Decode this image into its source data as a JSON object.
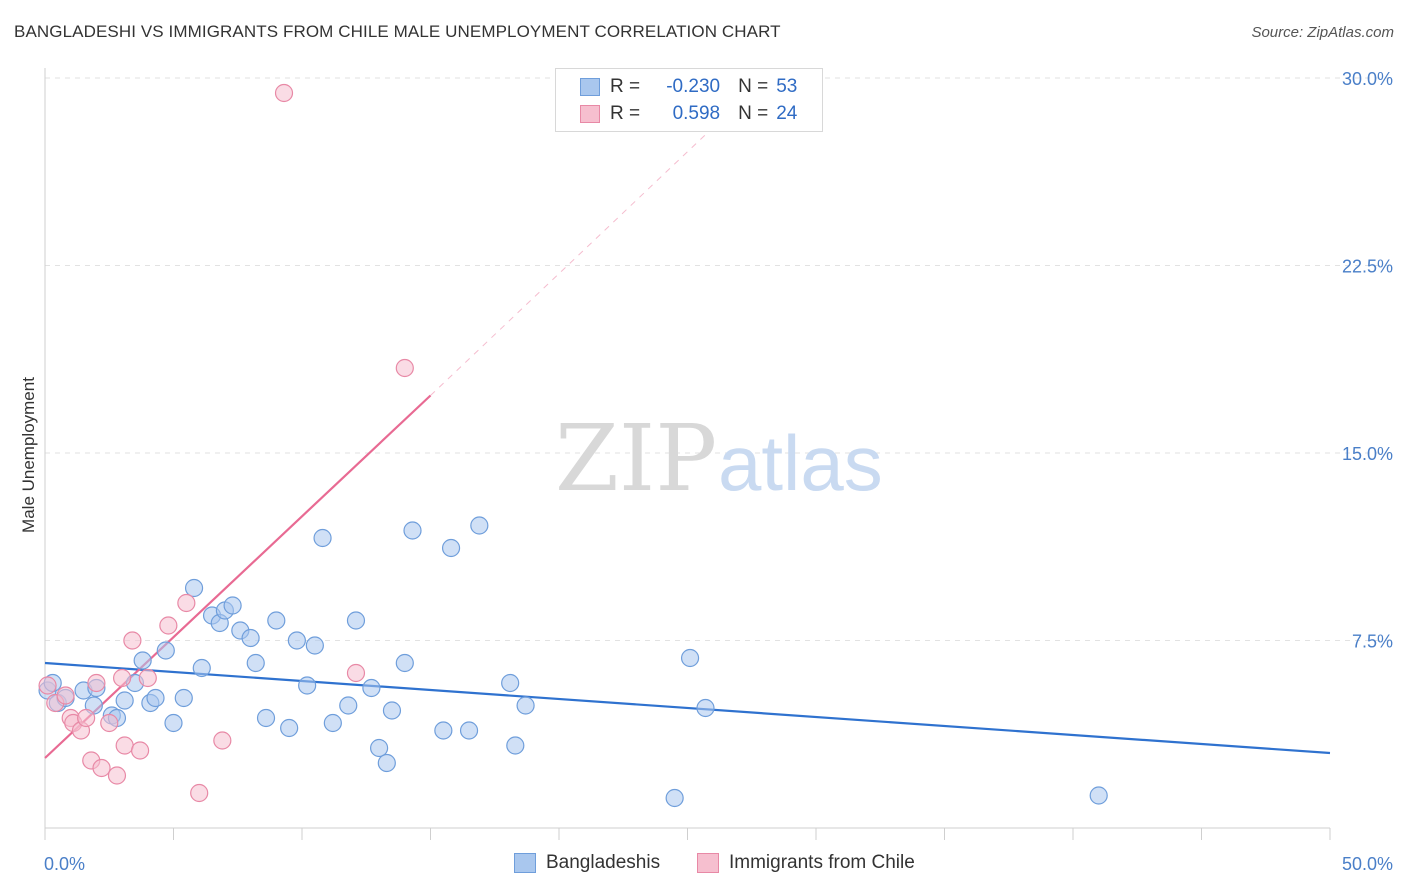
{
  "title": "BANGLADESHI VS IMMIGRANTS FROM CHILE MALE UNEMPLOYMENT CORRELATION CHART",
  "source": "Source: ZipAtlas.com",
  "watermark": {
    "zip": "ZIP",
    "atlas": "atlas"
  },
  "legend_top": {
    "rows": [
      {
        "r_label": "R =",
        "r_value": "-0.230",
        "n_label": "N =",
        "n_value": "53",
        "color": "#a9c7ee",
        "border": "#6f9edb"
      },
      {
        "r_label": "R =",
        "r_value": "0.598",
        "n_label": "N =",
        "n_value": "24",
        "color": "#f6bfcf",
        "border": "#e889a6"
      }
    ]
  },
  "legend_bottom": [
    {
      "label": "Bangladeshis",
      "color": "#a9c7ee",
      "border": "#6f9edb"
    },
    {
      "label": "Immigrants from Chile",
      "color": "#f6bfcf",
      "border": "#e889a6"
    }
  ],
  "chart_data": {
    "type": "scatter",
    "title": "BANGLADESHI VS IMMIGRANTS FROM CHILE MALE UNEMPLOYMENT CORRELATION CHART",
    "xlabel": "",
    "ylabel": "Male Unemployment",
    "xlim": [
      0,
      50
    ],
    "ylim": [
      0,
      30
    ],
    "x_tick_labels": [
      "0.0%",
      "50.0%"
    ],
    "y_ticks": [
      7.5,
      15.0,
      22.5,
      30.0
    ],
    "y_tick_labels": [
      "7.5%",
      "15.0%",
      "22.5%",
      "30.0%"
    ],
    "grid": "horizontal dashed",
    "series": [
      {
        "name": "Bangladeshis",
        "color": "#a9c7ee",
        "stroke": "#6f9edb",
        "x": [
          0.1,
          0.5,
          0.8,
          1.5,
          1.9,
          2.0,
          2.6,
          2.8,
          3.1,
          3.5,
          3.8,
          4.1,
          4.3,
          4.7,
          5.0,
          5.4,
          5.8,
          6.1,
          6.5,
          6.8,
          7.0,
          7.3,
          7.6,
          8.0,
          8.2,
          8.6,
          9.0,
          9.5,
          9.8,
          10.2,
          10.5,
          10.8,
          11.2,
          11.8,
          12.1,
          12.7,
          13.0,
          13.3,
          13.5,
          14.0,
          14.3,
          15.5,
          15.8,
          16.5,
          16.9,
          18.1,
          18.3,
          18.7,
          24.5,
          25.1,
          25.7,
          41.0,
          0.3
        ],
        "y": [
          5.5,
          5.0,
          5.2,
          5.5,
          4.9,
          5.6,
          4.5,
          4.4,
          5.1,
          5.8,
          6.7,
          5.0,
          5.2,
          7.1,
          4.2,
          5.2,
          9.6,
          6.4,
          8.5,
          8.2,
          8.7,
          8.9,
          7.9,
          7.6,
          6.6,
          4.4,
          8.3,
          4.0,
          7.5,
          5.7,
          7.3,
          11.6,
          4.2,
          4.9,
          8.3,
          5.6,
          3.2,
          2.6,
          4.7,
          6.6,
          11.9,
          3.9,
          11.2,
          3.9,
          12.1,
          5.8,
          3.3,
          4.9,
          1.2,
          6.8,
          4.8,
          1.3,
          5.8
        ]
      },
      {
        "name": "Immigrants from Chile",
        "color": "#f6bfcf",
        "stroke": "#e889a6",
        "x": [
          0.1,
          0.4,
          0.8,
          1.0,
          1.1,
          1.4,
          1.6,
          1.8,
          2.0,
          2.2,
          2.5,
          2.8,
          3.0,
          3.1,
          3.4,
          3.7,
          4.0,
          4.8,
          5.5,
          6.0,
          6.9,
          9.3,
          12.1,
          14.0
        ],
        "y": [
          5.7,
          5.0,
          5.3,
          4.4,
          4.2,
          3.9,
          4.4,
          2.7,
          5.8,
          2.4,
          4.2,
          2.1,
          6.0,
          3.3,
          7.5,
          3.1,
          6.0,
          8.1,
          9.0,
          1.4,
          3.5,
          29.4,
          6.2,
          18.4
        ]
      }
    ],
    "trend_lines": [
      {
        "series": "Bangladeshis",
        "x0": 0,
        "y0": 6.6,
        "x1": 50,
        "y1": 3.0,
        "style": "solid"
      },
      {
        "series": "Immigrants from Chile",
        "x0": 0,
        "y0": 2.8,
        "x1": 15,
        "y1": 17.3,
        "style": "solid"
      },
      {
        "series": "Immigrants from Chile",
        "x0": 15,
        "y0": 17.3,
        "x1": 27,
        "y1": 29.0,
        "style": "dashed"
      }
    ]
  }
}
